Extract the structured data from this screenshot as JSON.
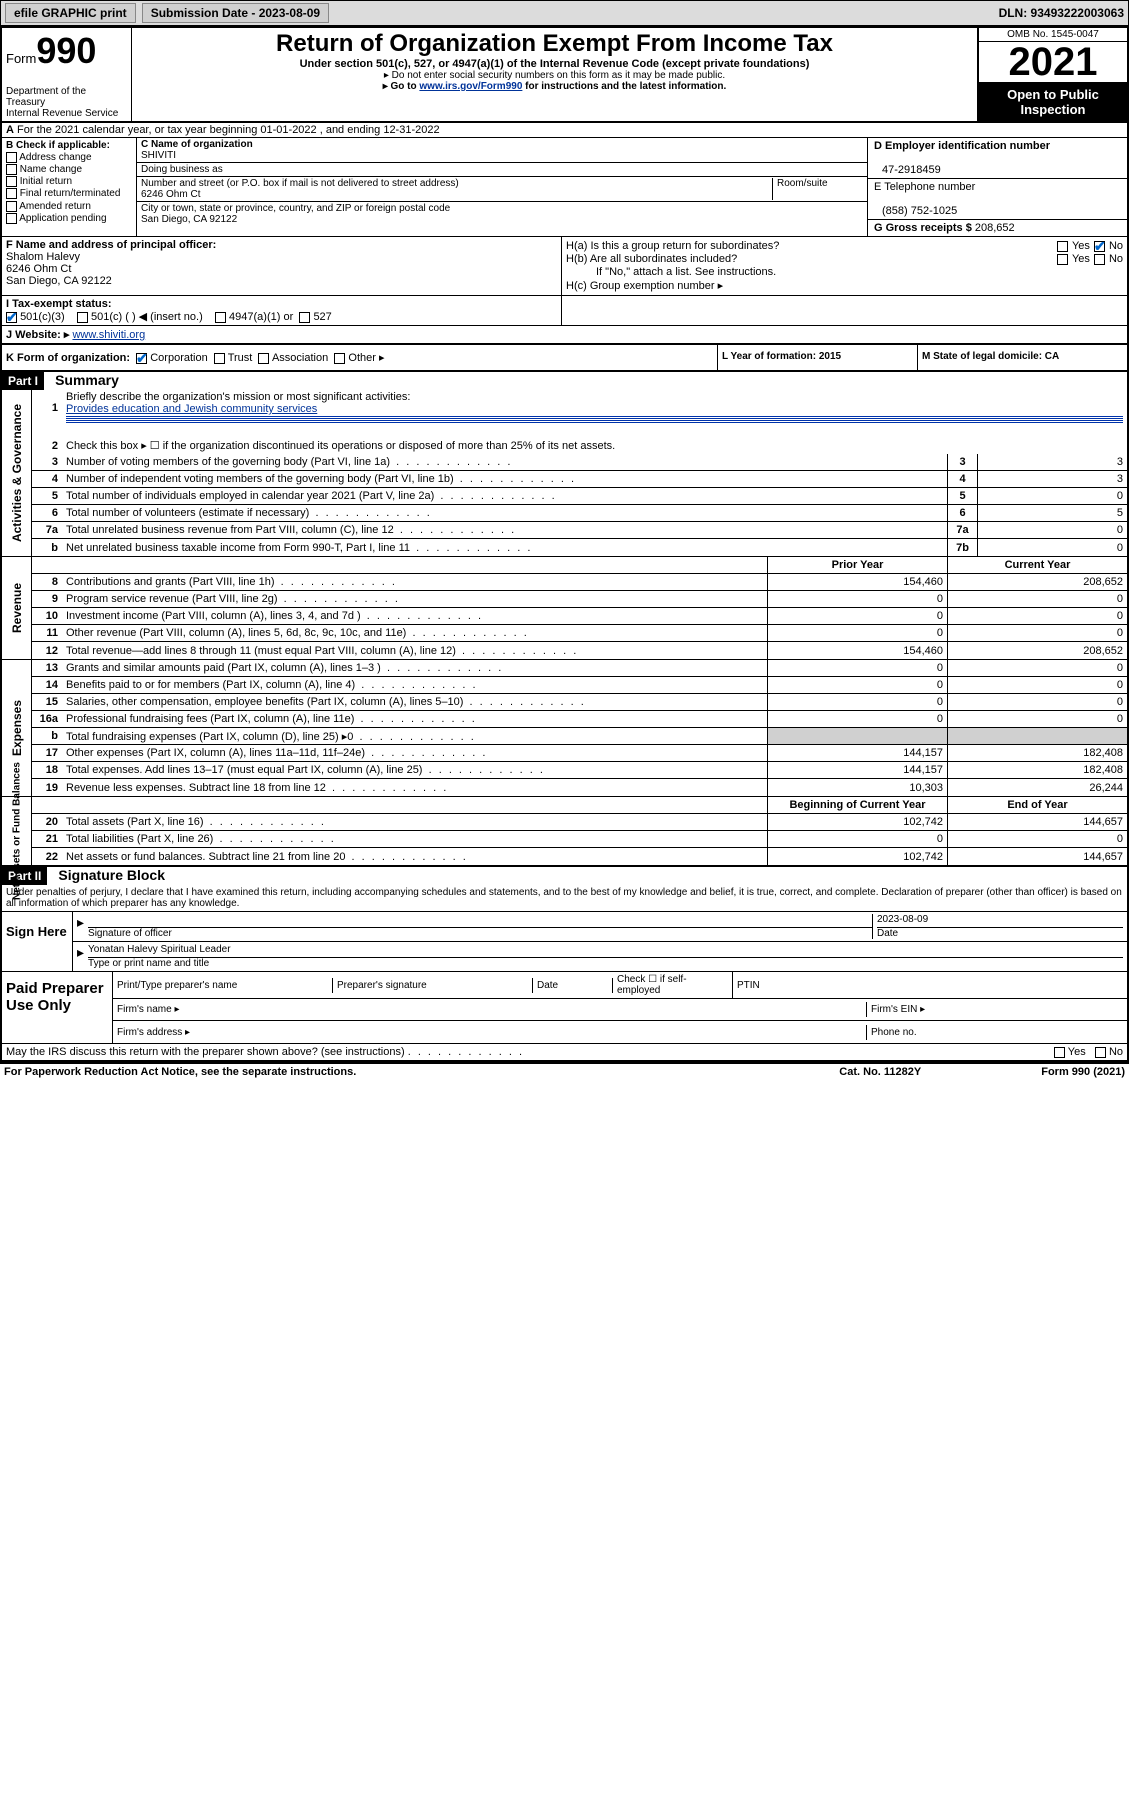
{
  "top": {
    "efile": "efile GRAPHIC print",
    "sub_label": "Submission Date - 2023-08-09",
    "dln": "DLN: 93493222003063"
  },
  "header": {
    "form_label": "Form",
    "form_num": "990",
    "title": "Return of Organization Exempt From Income Tax",
    "sub1": "Under section 501(c), 527, or 4947(a)(1) of the Internal Revenue Code (except private foundations)",
    "sub2": "▸ Do not enter social security numbers on this form as it may be made public.",
    "sub3_pre": "▸ Go to ",
    "sub3_link": "www.irs.gov/Form990",
    "sub3_post": " for instructions and the latest information.",
    "dept": "Department of the Treasury",
    "irs": "Internal Revenue Service",
    "omb": "OMB No. 1545-0047",
    "year": "2021",
    "open": "Open to Public Inspection"
  },
  "rowA": {
    "a_label": "A",
    "text": "For the 2021 calendar year, or tax year beginning 01-01-2022   , and ending 12-31-2022"
  },
  "colB": {
    "header": "B Check if applicable:",
    "items": [
      "Address change",
      "Name change",
      "Initial return",
      "Final return/terminated",
      "Amended return",
      "Application pending"
    ]
  },
  "colC": {
    "name_label": "C Name of organization",
    "name": "SHIVITI",
    "dba_label": "Doing business as",
    "dba": "",
    "addr_label": "Number and street (or P.O. box if mail is not delivered to street address)",
    "room_label": "Room/suite",
    "addr": "6246 Ohm Ct",
    "city_label": "City or town, state or province, country, and ZIP or foreign postal code",
    "city": "San Diego, CA  92122"
  },
  "colD": {
    "ein_label": "D Employer identification number",
    "ein": "47-2918459",
    "tel_label": "E Telephone number",
    "tel": "(858) 752-1025",
    "gross_label": "G Gross receipts $",
    "gross": "208,652"
  },
  "rowF": {
    "f_label": "F  Name and address of principal officer:",
    "name": "Shalom Halevy",
    "addr1": "6246 Ohm Ct",
    "addr2": "San Diego, CA  92122"
  },
  "rowH": {
    "ha": "H(a)  Is this a group return for subordinates?",
    "hb": "H(b)  Are all subordinates included?",
    "hb2": "If \"No,\" attach a list. See instructions.",
    "hc": "H(c)  Group exemption number ▸",
    "yes": "Yes",
    "no": "No"
  },
  "rowI": {
    "label": "I    Tax-exempt status:",
    "opt1": "501(c)(3)",
    "opt2": "501(c) (  ) ◀ (insert no.)",
    "opt3": "4947(a)(1) or",
    "opt4": "527"
  },
  "rowJ": {
    "label": "J   Website: ▸",
    "url": "www.shiviti.org"
  },
  "rowK": {
    "label": "K Form of organization:",
    "opts": [
      "Corporation",
      "Trust",
      "Association",
      "Other ▸"
    ],
    "L": "L Year of formation: 2015",
    "M": "M State of legal domicile: CA"
  },
  "part1": {
    "hdr": "Part I",
    "title": "Summary",
    "q1_label": "1",
    "q1_text": "Briefly describe the organization's mission or most significant activities:",
    "q1_val": "Provides education and Jewish community services",
    "q2_label": "2",
    "q2_text": "Check this box ▸ ☐  if the organization discontinued its operations or disposed of more than 25% of its net assets.",
    "lines": [
      {
        "n": "3",
        "t": "Number of voting members of the governing body (Part VI, line 1a)",
        "box": "3",
        "v": "3"
      },
      {
        "n": "4",
        "t": "Number of independent voting members of the governing body (Part VI, line 1b)",
        "box": "4",
        "v": "3"
      },
      {
        "n": "5",
        "t": "Total number of individuals employed in calendar year 2021 (Part V, line 2a)",
        "box": "5",
        "v": "0"
      },
      {
        "n": "6",
        "t": "Total number of volunteers (estimate if necessary)",
        "box": "6",
        "v": "5"
      },
      {
        "n": "7a",
        "t": "Total unrelated business revenue from Part VIII, column (C), line 12",
        "box": "7a",
        "v": "0"
      },
      {
        "n": "b",
        "t": "Net unrelated business taxable income from Form 990-T, Part I, line 11",
        "box": "7b",
        "v": "0"
      }
    ],
    "col_hdr_prior": "Prior Year",
    "col_hdr_current": "Current Year",
    "rev": [
      {
        "n": "8",
        "t": "Contributions and grants (Part VIII, line 1h)",
        "p": "154,460",
        "c": "208,652"
      },
      {
        "n": "9",
        "t": "Program service revenue (Part VIII, line 2g)",
        "p": "0",
        "c": "0"
      },
      {
        "n": "10",
        "t": "Investment income (Part VIII, column (A), lines 3, 4, and 7d )",
        "p": "0",
        "c": "0"
      },
      {
        "n": "11",
        "t": "Other revenue (Part VIII, column (A), lines 5, 6d, 8c, 9c, 10c, and 11e)",
        "p": "0",
        "c": "0"
      },
      {
        "n": "12",
        "t": "Total revenue—add lines 8 through 11 (must equal Part VIII, column (A), line 12)",
        "p": "154,460",
        "c": "208,652"
      }
    ],
    "exp": [
      {
        "n": "13",
        "t": "Grants and similar amounts paid (Part IX, column (A), lines 1–3 )",
        "p": "0",
        "c": "0"
      },
      {
        "n": "14",
        "t": "Benefits paid to or for members (Part IX, column (A), line 4)",
        "p": "0",
        "c": "0"
      },
      {
        "n": "15",
        "t": "Salaries, other compensation, employee benefits (Part IX, column (A), lines 5–10)",
        "p": "0",
        "c": "0"
      },
      {
        "n": "16a",
        "t": "Professional fundraising fees (Part IX, column (A), line 11e)",
        "p": "0",
        "c": "0"
      },
      {
        "n": "b",
        "t": "Total fundraising expenses (Part IX, column (D), line 25) ▸0",
        "p": "",
        "c": "",
        "gray": true
      },
      {
        "n": "17",
        "t": "Other expenses (Part IX, column (A), lines 11a–11d, 11f–24e)",
        "p": "144,157",
        "c": "182,408"
      },
      {
        "n": "18",
        "t": "Total expenses. Add lines 13–17 (must equal Part IX, column (A), line 25)",
        "p": "144,157",
        "c": "182,408"
      },
      {
        "n": "19",
        "t": "Revenue less expenses. Subtract line 18 from line 12",
        "p": "10,303",
        "c": "26,244"
      }
    ],
    "col_hdr_begin": "Beginning of Current Year",
    "col_hdr_end": "End of Year",
    "net": [
      {
        "n": "20",
        "t": "Total assets (Part X, line 16)",
        "p": "102,742",
        "c": "144,657"
      },
      {
        "n": "21",
        "t": "Total liabilities (Part X, line 26)",
        "p": "0",
        "c": "0"
      },
      {
        "n": "22",
        "t": "Net assets or fund balances. Subtract line 21 from line 20",
        "p": "102,742",
        "c": "144,657"
      }
    ],
    "rot_gov": "Activities & Governance",
    "rot_rev": "Revenue",
    "rot_exp": "Expenses",
    "rot_net": "Net Assets or Fund Balances"
  },
  "part2": {
    "hdr": "Part II",
    "title": "Signature Block",
    "decl": "Under penalties of perjury, I declare that I have examined this return, including accompanying schedules and statements, and to the best of my knowledge and belief, it is true, correct, and complete. Declaration of preparer (other than officer) is based on all information of which preparer has any knowledge.",
    "sign_here": "Sign Here",
    "sig_label": "Signature of officer",
    "date_label": "Date",
    "date_val": "2023-08-09",
    "name_val": "Yonatan Halevy  Spiritual Leader",
    "name_label": "Type or print name and title",
    "paid_left": "Paid Preparer Use Only",
    "prep_name": "Print/Type preparer's name",
    "prep_sig": "Preparer's signature",
    "prep_date": "Date",
    "prep_check": "Check ☐ if self-employed",
    "ptin": "PTIN",
    "firm_name": "Firm's name  ▸",
    "firm_ein": "Firm's EIN ▸",
    "firm_addr": "Firm's address ▸",
    "phone": "Phone no.",
    "may_irs": "May the IRS discuss this return with the preparer shown above? (see instructions)"
  },
  "footer": {
    "pra": "For Paperwork Reduction Act Notice, see the separate instructions.",
    "cat": "Cat. No. 11282Y",
    "form": "Form 990 (2021)"
  }
}
